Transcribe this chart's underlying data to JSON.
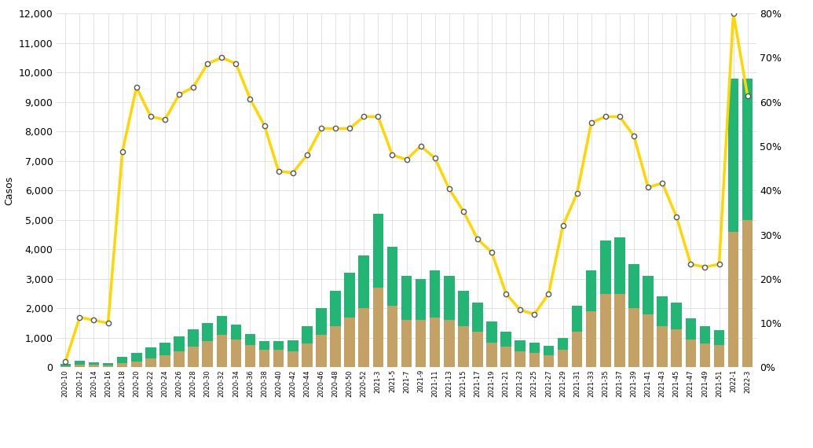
{
  "x_labels": [
    "2020-10",
    "2020-12",
    "2020-14",
    "2020-16",
    "2020-18",
    "2020-20",
    "2020-22",
    "2020-24",
    "2020-26",
    "2020-28",
    "2020-30",
    "2020-32",
    "2020-34",
    "2020-36",
    "2020-38",
    "2020-40",
    "2020-42",
    "2020-44",
    "2020-46",
    "2020-48",
    "2020-50",
    "2020-52",
    "2021-3",
    "2021-5",
    "2021-7",
    "2021-9",
    "2021-11",
    "2021-13",
    "2021-15",
    "2021-17",
    "2021-19",
    "2021-21",
    "2021-23",
    "2021-25",
    "2021-27",
    "2021-29",
    "2021-31",
    "2021-33",
    "2021-35",
    "2021-37",
    "2021-39",
    "2021-41",
    "2021-43",
    "2021-45",
    "2021-47",
    "2021-49",
    "2021-51",
    "2022-1",
    "2022-3"
  ],
  "bar_green": [
    80,
    130,
    100,
    80,
    200,
    280,
    380,
    450,
    500,
    600,
    600,
    650,
    500,
    380,
    300,
    280,
    380,
    600,
    900,
    1200,
    1500,
    1800,
    2500,
    2000,
    1500,
    1400,
    1600,
    1500,
    1200,
    1000,
    700,
    500,
    380,
    350,
    300,
    400,
    900,
    1400,
    1800,
    1900,
    1500,
    1300,
    1000,
    900,
    700,
    600,
    500,
    5200,
    4800
  ],
  "bar_tan": [
    50,
    100,
    80,
    60,
    150,
    200,
    300,
    400,
    550,
    700,
    900,
    1100,
    950,
    750,
    600,
    600,
    550,
    800,
    1100,
    1400,
    1700,
    2000,
    2700,
    2100,
    1600,
    1600,
    1700,
    1600,
    1400,
    1200,
    850,
    700,
    550,
    500,
    420,
    600,
    1200,
    1900,
    2500,
    2500,
    2000,
    1800,
    1400,
    1300,
    950,
    800,
    750,
    4600,
    5000
  ],
  "line_values": [
    200,
    1700,
    1600,
    1500,
    7300,
    9500,
    8500,
    8400,
    9250,
    9500,
    10300,
    10500,
    10300,
    9100,
    8200,
    6650,
    6600,
    7200,
    8100,
    8100,
    8100,
    8500,
    8500,
    7200,
    7050,
    7500,
    7100,
    6050,
    5300,
    4350,
    3900,
    2500,
    1950,
    1800,
    2500,
    4800,
    5900,
    8300,
    8500,
    8500,
    7850,
    6100,
    6250,
    5100,
    3500,
    3400,
    3500,
    12000,
    9200
  ],
  "bar_color_green": "#22b573",
  "bar_color_tan": "#c4a265",
  "line_color": "#FFD700",
  "line_marker": "o",
  "line_marker_color": "white",
  "line_marker_edgecolor": "#555555",
  "background_color": "#ffffff",
  "plot_bg_color": "#ffffff",
  "grid_color": "#dddddd",
  "ylabel_left": "Casos",
  "ylim_left": [
    0,
    12000
  ],
  "ylim_right": [
    0,
    0.8
  ],
  "yticks_left": [
    0,
    1000,
    2000,
    3000,
    4000,
    5000,
    6000,
    7000,
    8000,
    9000,
    10000,
    11000,
    12000
  ],
  "yticks_right_vals": [
    0,
    0.1,
    0.2,
    0.3,
    0.4,
    0.5,
    0.6,
    0.7,
    0.8
  ],
  "yticks_right_labels": [
    "0%",
    "10%",
    "20%",
    "30%",
    "40%",
    "50%",
    "60%",
    "70%",
    "80%"
  ]
}
